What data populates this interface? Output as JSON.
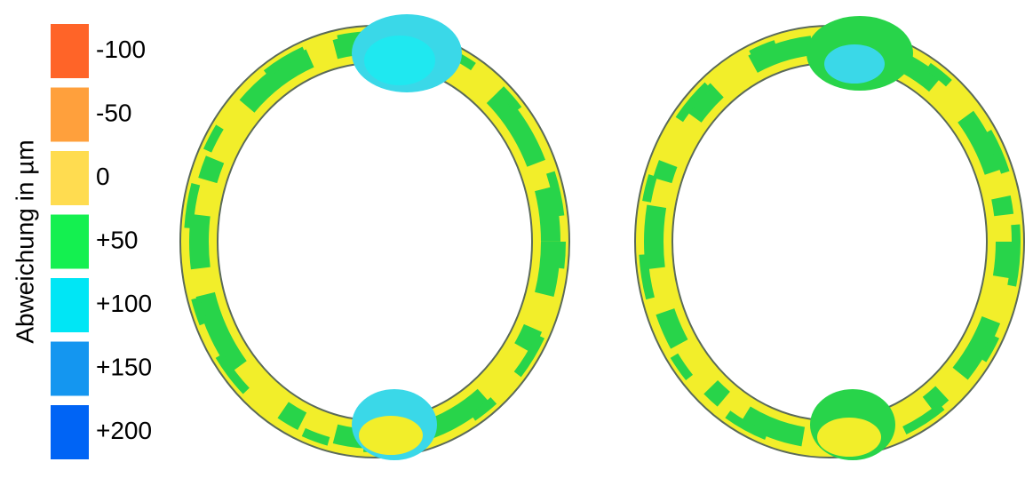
{
  "legend": {
    "title": "Abweichung in µm",
    "items": [
      {
        "label": "-100",
        "color": "#ff6428"
      },
      {
        "label": "-50",
        "color": "#ffa03c"
      },
      {
        "label": "0",
        "color": "#ffdc50"
      },
      {
        "label": "+50",
        "color": "#14f050"
      },
      {
        "label": "+100",
        "color": "#00e6f5"
      },
      {
        "label": "+150",
        "color": "#1496f0"
      },
      {
        "label": "+200",
        "color": "#0064f5"
      }
    ]
  }
}
